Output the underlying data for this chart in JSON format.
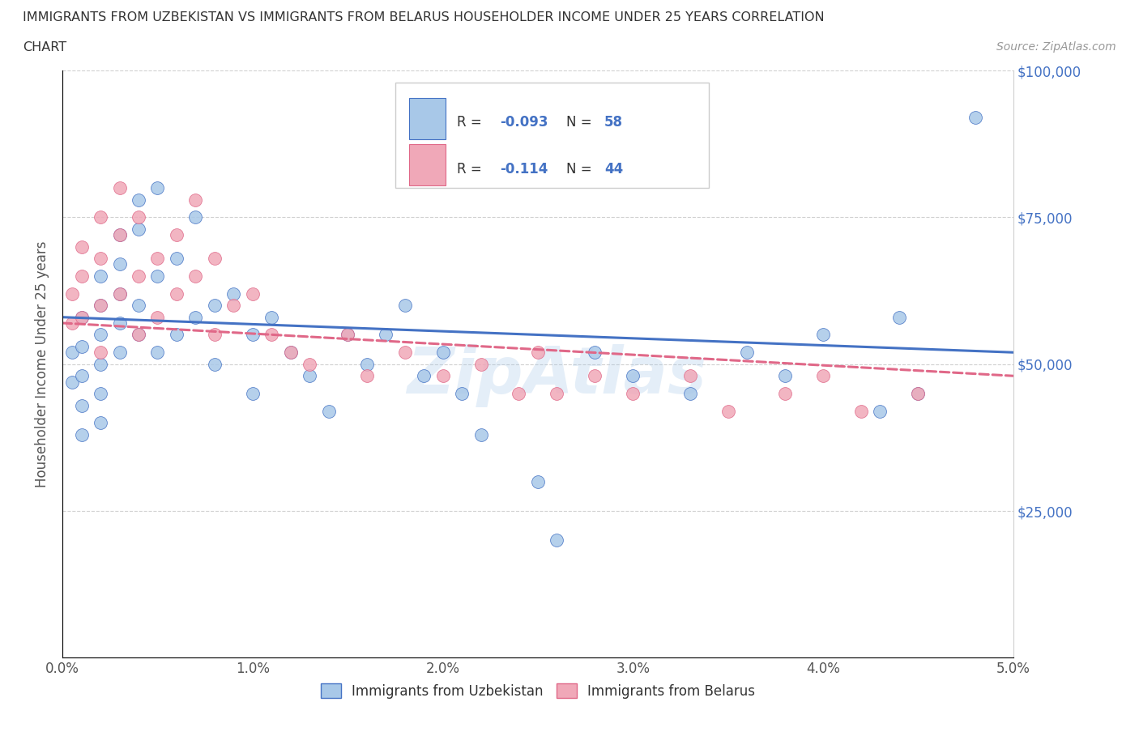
{
  "title_line1": "IMMIGRANTS FROM UZBEKISTAN VS IMMIGRANTS FROM BELARUS HOUSEHOLDER INCOME UNDER 25 YEARS CORRELATION",
  "title_line2": "CHART",
  "source": "Source: ZipAtlas.com",
  "ylabel": "Householder Income Under 25 years",
  "xlim": [
    0.0,
    0.05
  ],
  "ylim": [
    0,
    100000
  ],
  "xticklabels": [
    "0.0%",
    "1.0%",
    "2.0%",
    "3.0%",
    "4.0%",
    "5.0%"
  ],
  "yticks": [
    0,
    25000,
    50000,
    75000,
    100000
  ],
  "yticklabels": [
    "",
    "$25,000",
    "$50,000",
    "$75,000",
    "$100,000"
  ],
  "color_uzbekistan": "#a8c8e8",
  "color_belarus": "#f0a8b8",
  "line_color_uzbekistan": "#4472c4",
  "line_color_belarus": "#e06888",
  "R_uzbekistan": -0.093,
  "N_uzbekistan": 58,
  "R_belarus": -0.114,
  "N_belarus": 44,
  "legend_label_uzbekistan": "Immigrants from Uzbekistan",
  "legend_label_belarus": "Immigrants from Belarus",
  "watermark": "ZipAtlas",
  "uzbekistan_x": [
    0.0005,
    0.0005,
    0.001,
    0.001,
    0.001,
    0.001,
    0.001,
    0.002,
    0.002,
    0.002,
    0.002,
    0.002,
    0.002,
    0.003,
    0.003,
    0.003,
    0.003,
    0.003,
    0.004,
    0.004,
    0.004,
    0.004,
    0.005,
    0.005,
    0.005,
    0.006,
    0.006,
    0.007,
    0.007,
    0.008,
    0.008,
    0.009,
    0.01,
    0.01,
    0.011,
    0.012,
    0.013,
    0.014,
    0.015,
    0.016,
    0.017,
    0.018,
    0.019,
    0.02,
    0.021,
    0.022,
    0.025,
    0.026,
    0.028,
    0.03,
    0.033,
    0.036,
    0.038,
    0.04,
    0.043,
    0.044,
    0.045,
    0.048
  ],
  "uzbekistan_y": [
    52000,
    47000,
    58000,
    53000,
    48000,
    43000,
    38000,
    65000,
    60000,
    55000,
    50000,
    45000,
    40000,
    72000,
    67000,
    62000,
    57000,
    52000,
    78000,
    73000,
    60000,
    55000,
    80000,
    65000,
    52000,
    68000,
    55000,
    75000,
    58000,
    60000,
    50000,
    62000,
    55000,
    45000,
    58000,
    52000,
    48000,
    42000,
    55000,
    50000,
    55000,
    60000,
    48000,
    52000,
    45000,
    38000,
    30000,
    20000,
    52000,
    48000,
    45000,
    52000,
    48000,
    55000,
    42000,
    58000,
    45000,
    92000
  ],
  "belarus_x": [
    0.0005,
    0.0005,
    0.001,
    0.001,
    0.001,
    0.002,
    0.002,
    0.002,
    0.002,
    0.003,
    0.003,
    0.003,
    0.004,
    0.004,
    0.004,
    0.005,
    0.005,
    0.006,
    0.006,
    0.007,
    0.007,
    0.008,
    0.008,
    0.009,
    0.01,
    0.011,
    0.012,
    0.013,
    0.015,
    0.016,
    0.018,
    0.02,
    0.022,
    0.024,
    0.025,
    0.026,
    0.028,
    0.03,
    0.033,
    0.035,
    0.038,
    0.04,
    0.042,
    0.045
  ],
  "belarus_y": [
    62000,
    57000,
    70000,
    65000,
    58000,
    75000,
    68000,
    60000,
    52000,
    80000,
    72000,
    62000,
    75000,
    65000,
    55000,
    68000,
    58000,
    72000,
    62000,
    78000,
    65000,
    68000,
    55000,
    60000,
    62000,
    55000,
    52000,
    50000,
    55000,
    48000,
    52000,
    48000,
    50000,
    45000,
    52000,
    45000,
    48000,
    45000,
    48000,
    42000,
    45000,
    48000,
    42000,
    45000
  ]
}
